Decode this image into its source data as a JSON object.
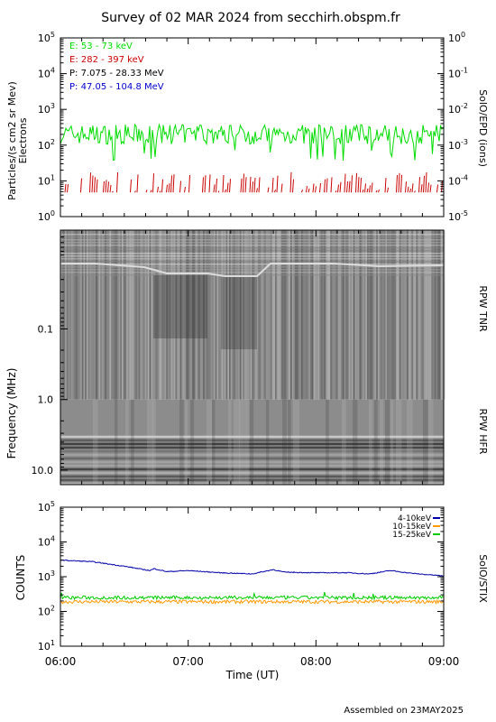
{
  "title": "Survey of 02 MAR 2024 from secchirh.obspm.fr",
  "footer": "Assembled on 23MAY2025",
  "chart_data": [
    {
      "type": "line",
      "panel": "particles",
      "ylabel": "Particles/(s cm2 sr Mev)",
      "ylabel2": "Electrons",
      "right_label": "SolO/EPD (ions)",
      "yscale": "log",
      "ylim": [
        1,
        100000
      ],
      "yticks": [
        "10^0",
        "10^1",
        "10^2",
        "10^3",
        "10^4",
        "10^5"
      ],
      "y2lim": [
        1e-05,
        1
      ],
      "y2ticks": [
        "10^-5",
        "10^-4",
        "10^-3",
        "10^-2",
        "10^-1",
        "10^0"
      ],
      "xlim": [
        "06:00",
        "09:00"
      ],
      "legend_placement": "top-left",
      "series": [
        {
          "name": "E: 53 - 73 keV",
          "color": "#00dd00",
          "typical": 200,
          "range": [
            30,
            450
          ]
        },
        {
          "name": "E: 282 - 397 keV",
          "color": "#cc0000",
          "typical": 5,
          "range": [
            4,
            20
          ],
          "gaps": true
        },
        {
          "name": "P: 7.075 - 28.33 MeV",
          "color": "#000000",
          "visible_trace": false
        },
        {
          "name": "P: 47.05 - 104.8 MeV",
          "color": "#0000cc",
          "visible_trace": false
        }
      ]
    },
    {
      "type": "heatmap",
      "panel": "radio",
      "ylabel": "Frequency (MHz)",
      "yscale": "log",
      "yreversed": true,
      "yticks": [
        "0.1",
        "1.0",
        "10.0"
      ],
      "xlim": [
        "06:00",
        "09:00"
      ],
      "sub_panels": [
        {
          "label": "RPW TNR",
          "frange": [
            0.004,
            1.0
          ]
        },
        {
          "label": "RPW HFR",
          "frange": [
            1.0,
            16.0
          ]
        }
      ]
    },
    {
      "type": "line",
      "panel": "xray",
      "ylabel": "COUNTS",
      "right_label": "SolO/STIX",
      "yscale": "log",
      "ylim": [
        10,
        100000
      ],
      "yticks": [
        "10^1",
        "10^2",
        "10^3",
        "10^4",
        "10^5"
      ],
      "xlabel": "Time (UT)",
      "x_ticks": [
        "06:00",
        "07:00",
        "08:00",
        "09:00"
      ],
      "xlim": [
        "06:00",
        "09:00"
      ],
      "legend_placement": "top-right",
      "series": [
        {
          "name": "4-10keV",
          "color": "#0000aa",
          "x": [
            "06:00",
            "06:15",
            "06:30",
            "06:42",
            "06:44",
            "06:50",
            "07:00",
            "07:15",
            "07:30",
            "07:40",
            "07:45",
            "08:00",
            "08:15",
            "08:25",
            "08:35",
            "08:45",
            "09:00"
          ],
          "y": [
            3000,
            2700,
            2000,
            1500,
            1700,
            1400,
            1500,
            1300,
            1200,
            1600,
            1350,
            1300,
            1300,
            1200,
            1500,
            1250,
            1050
          ]
        },
        {
          "name": "10-15keV",
          "color": "#ff9900",
          "typical": 190,
          "range": [
            160,
            220
          ]
        },
        {
          "name": "15-25keV",
          "color": "#00cc00",
          "typical": 250,
          "range": [
            210,
            330
          ]
        }
      ]
    }
  ]
}
